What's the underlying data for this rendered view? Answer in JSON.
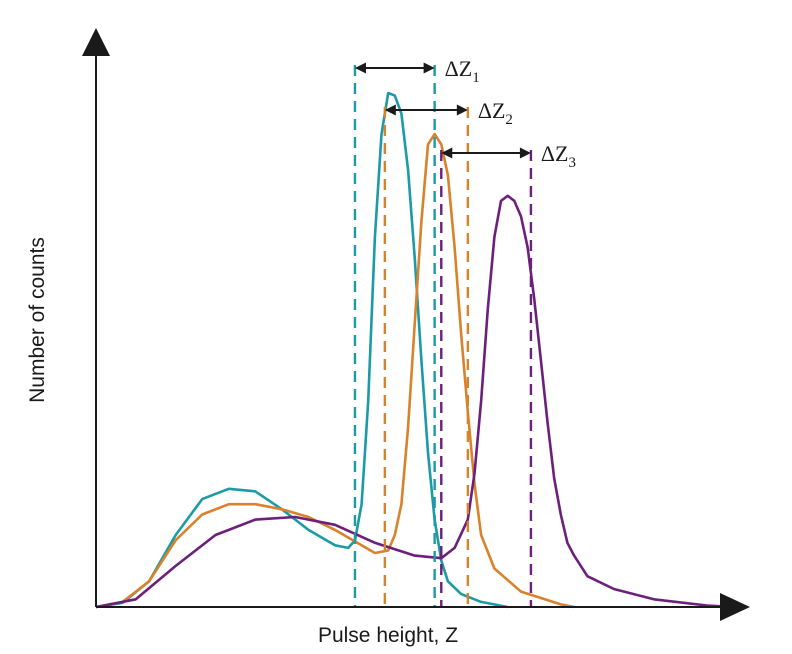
{
  "chart_data": {
    "type": "line",
    "xlabel": "Pulse height, Z",
    "ylabel": "Number of counts",
    "xlim": [
      0,
      100
    ],
    "ylim": [
      0,
      100
    ],
    "ticks": false,
    "grid": false,
    "series": [
      {
        "color": "#1a9ba6",
        "points": [
          [
            0,
            0
          ],
          [
            4,
            0.8
          ],
          [
            8,
            5
          ],
          [
            12,
            14
          ],
          [
            16,
            21
          ],
          [
            20,
            23
          ],
          [
            24,
            22.5
          ],
          [
            28,
            19
          ],
          [
            32,
            15
          ],
          [
            34,
            13.5
          ],
          [
            36,
            12
          ],
          [
            38,
            11.5
          ],
          [
            39,
            13
          ],
          [
            40,
            20
          ],
          [
            41,
            40
          ],
          [
            42,
            72
          ],
          [
            43,
            92
          ],
          [
            44,
            100
          ],
          [
            45,
            99.5
          ],
          [
            46,
            96
          ],
          [
            47,
            85
          ],
          [
            48,
            68
          ],
          [
            49,
            48
          ],
          [
            50,
            30
          ],
          [
            51,
            17
          ],
          [
            52,
            9
          ],
          [
            53,
            5
          ],
          [
            55,
            2.5
          ],
          [
            58,
            1
          ],
          [
            62,
            0
          ]
        ]
      },
      {
        "color": "#d9822b",
        "points": [
          [
            0,
            0
          ],
          [
            4,
            1
          ],
          [
            8,
            5
          ],
          [
            12,
            13
          ],
          [
            16,
            18
          ],
          [
            20,
            20
          ],
          [
            24,
            20
          ],
          [
            28,
            19
          ],
          [
            32,
            17.5
          ],
          [
            36,
            15
          ],
          [
            40,
            12
          ],
          [
            42,
            10.5
          ],
          [
            44,
            11
          ],
          [
            45,
            14
          ],
          [
            46,
            20
          ],
          [
            47,
            35
          ],
          [
            48,
            55
          ],
          [
            49,
            75
          ],
          [
            50,
            90
          ],
          [
            51,
            92
          ],
          [
            52,
            90
          ],
          [
            53,
            84
          ],
          [
            54,
            70
          ],
          [
            55,
            53
          ],
          [
            56,
            38
          ],
          [
            57,
            24
          ],
          [
            58,
            14
          ],
          [
            60,
            7.5
          ],
          [
            64,
            3
          ],
          [
            70,
            0.5
          ],
          [
            72,
            0
          ]
        ]
      },
      {
        "color": "#6d1f7c",
        "points": [
          [
            0,
            0
          ],
          [
            6,
            1.5
          ],
          [
            12,
            8
          ],
          [
            18,
            14
          ],
          [
            24,
            17
          ],
          [
            30,
            17.5
          ],
          [
            36,
            16
          ],
          [
            42,
            12.5
          ],
          [
            48,
            10
          ],
          [
            52,
            9.5
          ],
          [
            54,
            11.5
          ],
          [
            56,
            17
          ],
          [
            57,
            26
          ],
          [
            58,
            40
          ],
          [
            59,
            58
          ],
          [
            60,
            72
          ],
          [
            61,
            79
          ],
          [
            62,
            80
          ],
          [
            63,
            79
          ],
          [
            64,
            76
          ],
          [
            65,
            70
          ],
          [
            66,
            60
          ],
          [
            67,
            48
          ],
          [
            68,
            36
          ],
          [
            69,
            25
          ],
          [
            70,
            18
          ],
          [
            71,
            12.5
          ],
          [
            72,
            10
          ],
          [
            74,
            6
          ],
          [
            78,
            3.5
          ],
          [
            84,
            1.5
          ],
          [
            92,
            0.3
          ],
          [
            96,
            0
          ]
        ]
      }
    ],
    "markers": [
      {
        "label": "ΔZ",
        "subscript": "1",
        "color": "#1a9ba6",
        "range": [
          39,
          51
        ]
      },
      {
        "label": "ΔZ",
        "subscript": "2",
        "color": "#d9822b",
        "range": [
          43.5,
          56
        ]
      },
      {
        "label": "ΔZ",
        "subscript": "3",
        "color": "#6d1f7c",
        "range": [
          52,
          65.5
        ]
      }
    ],
    "axes_color": "#1a1a1a"
  }
}
